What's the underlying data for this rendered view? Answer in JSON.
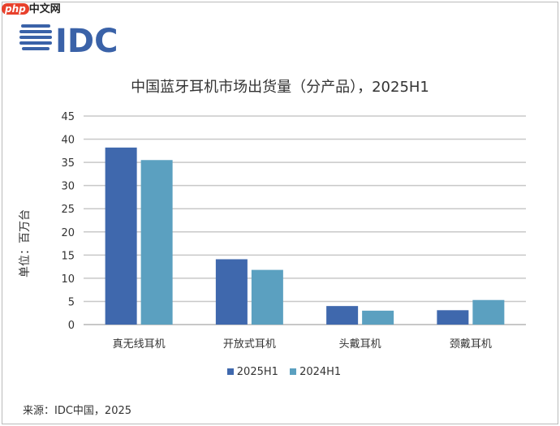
{
  "watermark": {
    "prefix": "php",
    "text": "中文网"
  },
  "logo": "IDC",
  "chart_data": {
    "type": "bar",
    "title": "中国蓝牙耳机市场出货量（分产品），2025H1",
    "ylabel": "单位：百万台",
    "xlabel": "",
    "categories": [
      "真无线耳机",
      "开放式耳机",
      "头戴耳机",
      "颈戴耳机"
    ],
    "series": [
      {
        "name": "2025H1",
        "color": "#3f68ad",
        "values": [
          38.2,
          14.1,
          4.0,
          3.1
        ]
      },
      {
        "name": "2024H1",
        "color": "#5ba0c0",
        "values": [
          35.5,
          11.8,
          3.0,
          5.3
        ]
      }
    ],
    "ylim": [
      0,
      45
    ],
    "yticks": [
      0,
      5,
      10,
      15,
      20,
      25,
      30,
      35,
      40,
      45
    ],
    "grid": true,
    "legend": "bottom"
  },
  "source": "来源：IDC中国，2025"
}
